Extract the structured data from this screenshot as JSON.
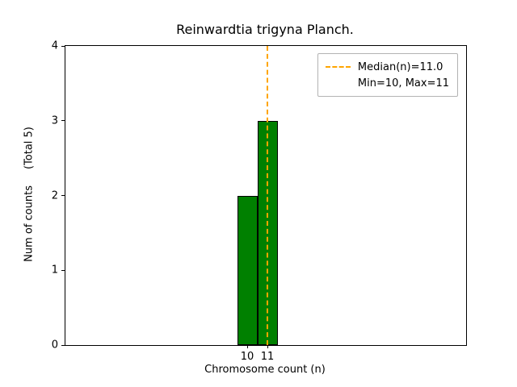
{
  "chart_data": {
    "type": "bar",
    "title": "Reinwardtia trigyna Planch.",
    "xlabel": "Chromosome count (n)",
    "ylabel": "Num of counts",
    "ylabel_note": "(Total 5)",
    "categories": [
      10,
      11
    ],
    "values": [
      2,
      3
    ],
    "bar_width": 1,
    "bar_color": "#008000",
    "bar_edge_color": "#000000",
    "xlim": [
      1.0,
      20.84
    ],
    "ylim": [
      0,
      4
    ],
    "xticks": [
      10,
      11
    ],
    "yticks": [
      0,
      1,
      2,
      3,
      4
    ],
    "grid": false,
    "median_line": {
      "x": 11,
      "color": "#FFA500",
      "style": "dashed"
    },
    "legend": {
      "position": "upper right",
      "entries": [
        {
          "sample": "dashed-line",
          "color": "#FFA500",
          "label": "Median(n)=11.0"
        },
        {
          "sample": "none",
          "color": "",
          "label": "Min=10, Max=11"
        }
      ]
    }
  }
}
